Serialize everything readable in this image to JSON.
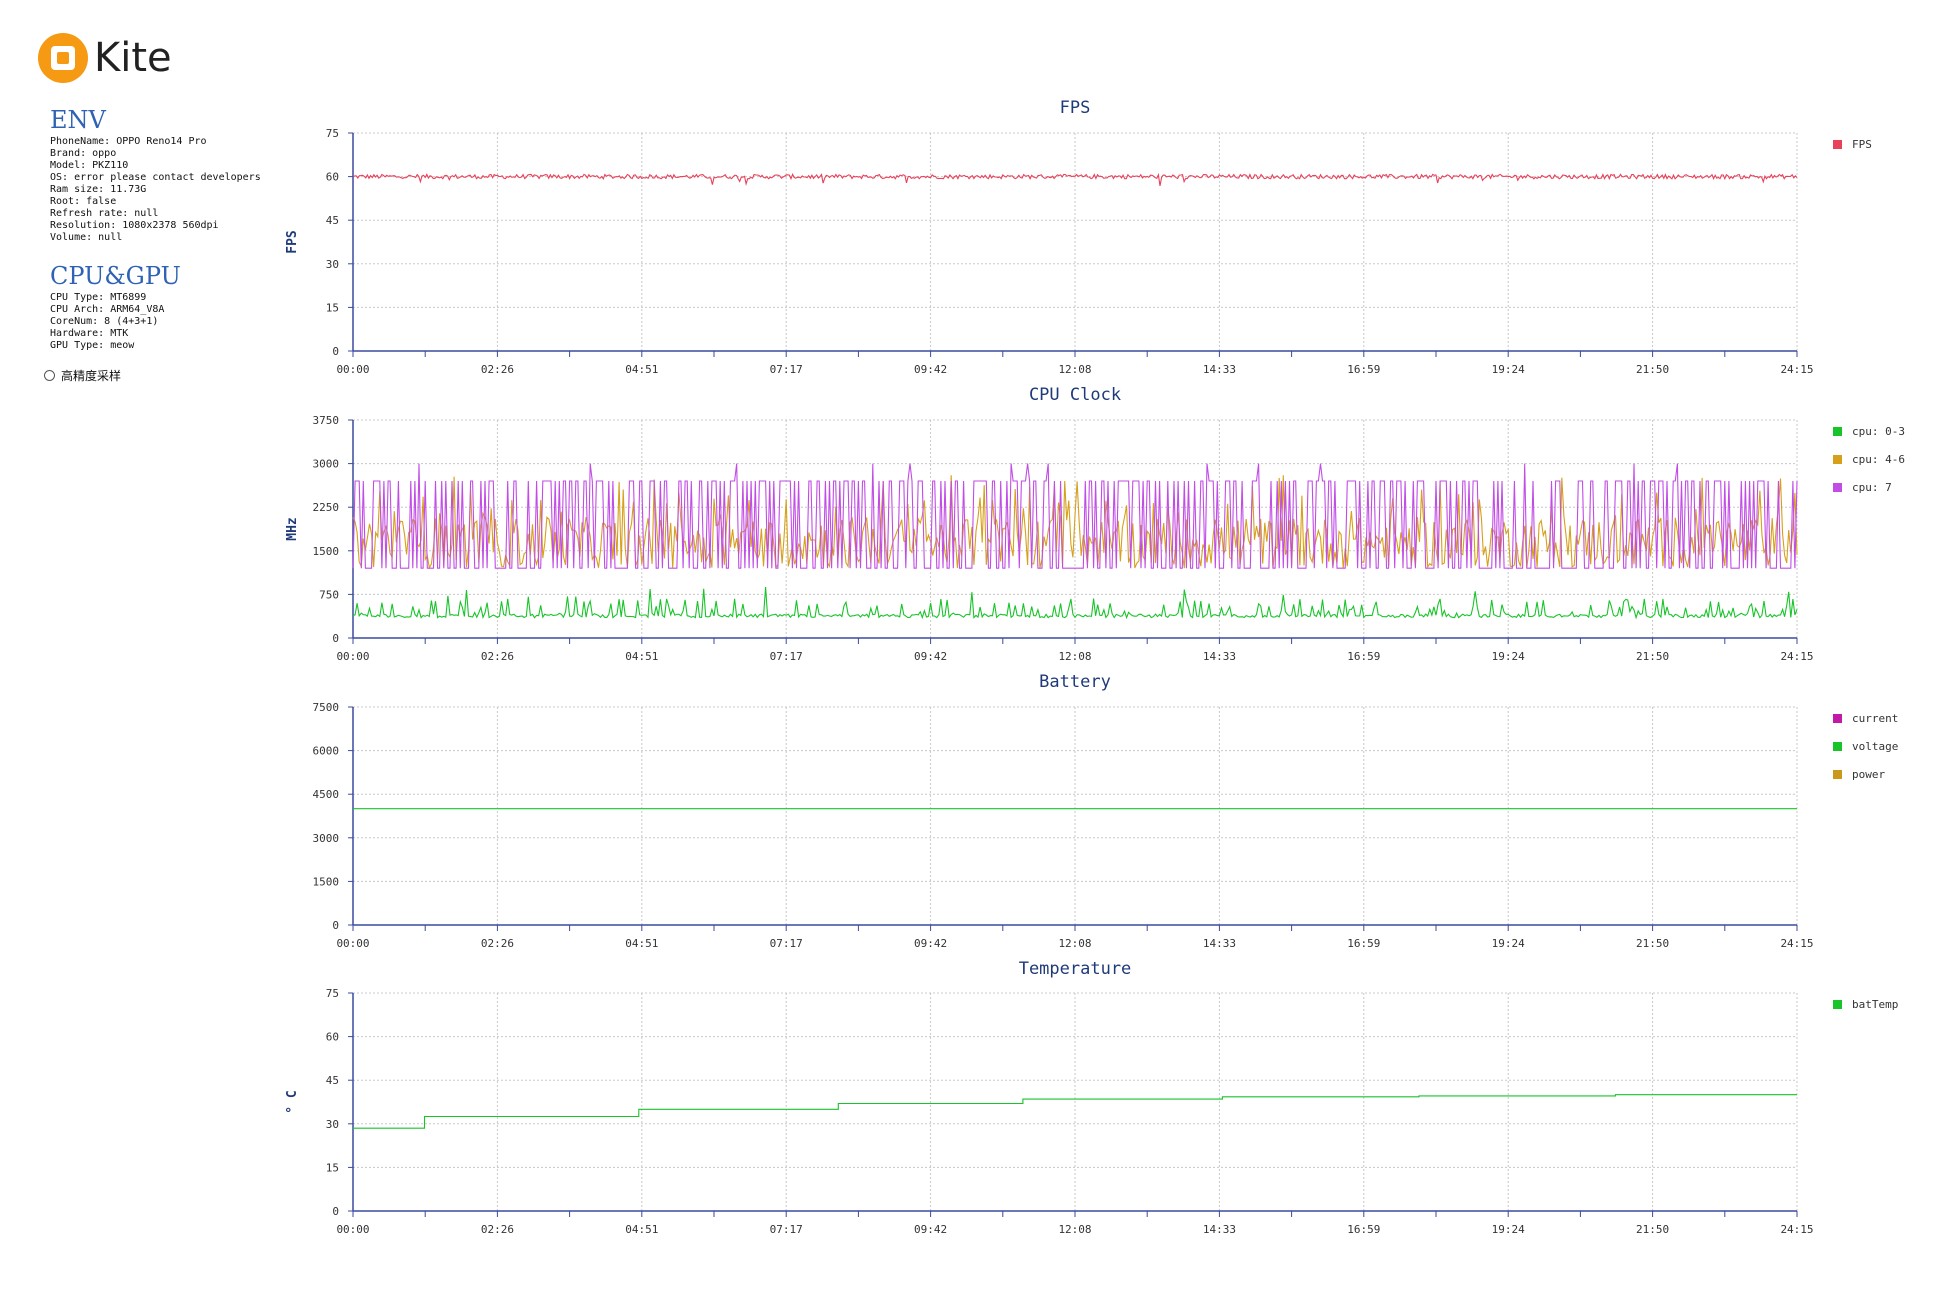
{
  "app": {
    "logo_text": "Kite"
  },
  "env": {
    "title": "ENV",
    "lines": [
      "PhoneName: OPPO Reno14 Pro",
      "Brand: oppo",
      "Model: PKZ110",
      "OS: error please contact developers",
      "Ram size: 11.73G",
      "Root: false",
      "Refresh rate: null",
      "Resolution: 1080x2378 560dpi",
      "Volume: null"
    ]
  },
  "cpugpu": {
    "title": "CPU&GPU",
    "lines": [
      "CPU Type: MT6899",
      "CPU Arch: ARM64_V8A",
      "CoreNum: 8 (4+3+1)",
      "Hardware: MTK",
      "GPU Type: meow"
    ]
  },
  "high_precision": {
    "label": "高精度采样"
  },
  "chart_data": [
    {
      "type": "line",
      "title": "FPS",
      "ylabel": "FPS",
      "ylim": [
        0,
        75
      ],
      "yticks": [
        "0",
        "15",
        "30",
        "45",
        "60",
        "75"
      ],
      "xticks": [
        "00:00",
        "02:26",
        "04:51",
        "07:17",
        "09:42",
        "12:08",
        "14:33",
        "16:59",
        "19:24",
        "21:50",
        "24:15"
      ],
      "grid": true,
      "legend_position": "right",
      "series": [
        {
          "name": "FPS",
          "color": "#e8415a",
          "level": 60,
          "noise": 1.5
        }
      ]
    },
    {
      "type": "line",
      "title": "CPU Clock",
      "ylabel": "MHz",
      "ylim": [
        0,
        3750
      ],
      "yticks": [
        "0",
        "750",
        "1500",
        "2250",
        "3000",
        "3750"
      ],
      "xticks": [
        "00:00",
        "02:26",
        "04:51",
        "07:17",
        "09:42",
        "12:08",
        "14:33",
        "16:59",
        "19:24",
        "21:50",
        "24:15"
      ],
      "grid": true,
      "legend_position": "right",
      "series": [
        {
          "name": "cpu: 0-3",
          "color": "#18c42a",
          "base": 350,
          "peak": 900
        },
        {
          "name": "cpu: 4-6",
          "color": "#d6a01a",
          "base": 1200,
          "peak": 2800
        },
        {
          "name": "cpu: 7",
          "color": "#c24ce6",
          "low": 1200,
          "high": 2700
        }
      ]
    },
    {
      "type": "line",
      "title": "Battery",
      "ylabel": "",
      "ylim": [
        0,
        7500
      ],
      "yticks": [
        "0",
        "1500",
        "3000",
        "4500",
        "6000",
        "7500"
      ],
      "xticks": [
        "00:00",
        "02:26",
        "04:51",
        "07:17",
        "09:42",
        "12:08",
        "14:33",
        "16:59",
        "19:24",
        "21:50",
        "24:15"
      ],
      "grid": true,
      "legend_position": "right",
      "series": [
        {
          "name": "current",
          "color": "#c21aa8",
          "values": []
        },
        {
          "name": "voltage",
          "color": "#18c42a",
          "x": [
            0,
            24.25
          ],
          "values": [
            4000,
            4000
          ]
        },
        {
          "name": "power",
          "color": "#c9991a",
          "values": []
        }
      ]
    },
    {
      "type": "line",
      "title": "Temperature",
      "ylabel": "° C",
      "ylim": [
        0,
        75
      ],
      "yticks": [
        "0",
        "15",
        "30",
        "45",
        "60",
        "75"
      ],
      "xticks": [
        "00:00",
        "02:26",
        "04:51",
        "07:17",
        "09:42",
        "12:08",
        "14:33",
        "16:59",
        "19:24",
        "21:50",
        "24:15"
      ],
      "grid": true,
      "legend_position": "right",
      "series": [
        {
          "name": "batTemp",
          "color": "#18c42a",
          "steps": [
            [
              0,
              28.5
            ],
            [
              1.2,
              32.5
            ],
            [
              4.8,
              35
            ],
            [
              8.15,
              37
            ],
            [
              11.25,
              38.5
            ],
            [
              14.6,
              39.3
            ],
            [
              17.9,
              39.6
            ],
            [
              21.2,
              40
            ],
            [
              24.25,
              40
            ]
          ]
        }
      ]
    }
  ]
}
